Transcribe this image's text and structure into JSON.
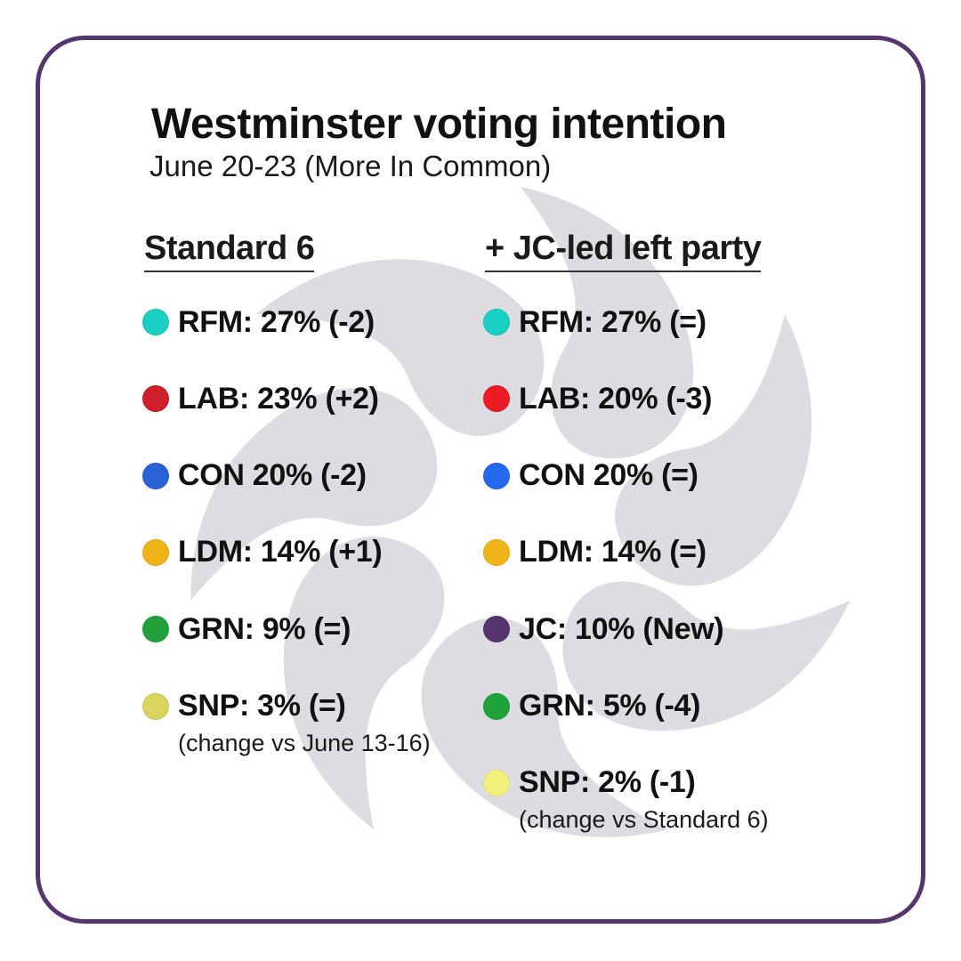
{
  "chart_data": {
    "type": "table",
    "title": "Westminster voting intention",
    "subtitle": "June 20-23 (More In Common)",
    "columns": [
      {
        "id": "standard",
        "header": "Standard 6",
        "note": "(change vs June 13-16)",
        "rows": [
          {
            "party": "RFM",
            "text": "RFM: 27% (-2)",
            "value": 27,
            "change": "-2",
            "color": "#1ad0c4"
          },
          {
            "party": "LAB",
            "text": "LAB: 23% (+2)",
            "value": 23,
            "change": "+2",
            "color": "#cf1f2a"
          },
          {
            "party": "CON",
            "text": "CON 20% (-2)",
            "value": 20,
            "change": "-2",
            "color": "#2a63d8"
          },
          {
            "party": "LDM",
            "text": "LDM: 14% (+1)",
            "value": 14,
            "change": "+1",
            "color": "#f0b41a"
          },
          {
            "party": "GRN",
            "text": "GRN: 9%  (=)",
            "value": 9,
            "change": "=",
            "color": "#21a13a"
          },
          {
            "party": "SNP",
            "text": "SNP: 3% (=)",
            "value": 3,
            "change": "=",
            "color": "#d9d55e"
          }
        ]
      },
      {
        "id": "jc",
        "header": "+ JC-led left party",
        "note": "(change vs Standard 6)",
        "rows": [
          {
            "party": "RFM",
            "text": "RFM: 27% (=)",
            "value": 27,
            "change": "=",
            "color": "#1ad0c4"
          },
          {
            "party": "LAB",
            "text": "LAB: 20% (-3)",
            "value": 20,
            "change": "-3",
            "color": "#ec1c24"
          },
          {
            "party": "CON",
            "text": "CON 20% (=)",
            "value": 20,
            "change": "=",
            "color": "#2468ec"
          },
          {
            "party": "LDM",
            "text": "LDM: 14% (=)",
            "value": 14,
            "change": "=",
            "color": "#f0b41a"
          },
          {
            "party": "JC",
            "text": "JC: 10% (New)",
            "value": 10,
            "change": "New",
            "color": "#55336e"
          },
          {
            "party": "GRN",
            "text": "GRN: 5%  (-4)",
            "value": 5,
            "change": "-4",
            "color": "#21a13a"
          },
          {
            "party": "SNP",
            "text": "SNP: 2% (-1)",
            "value": 2,
            "change": "-1",
            "color": "#f2f07a"
          }
        ]
      }
    ]
  },
  "colors": {
    "frame": "#55376e",
    "watermark": "#dcdce1"
  },
  "icons": {
    "watermark": "swirl-logo-icon"
  }
}
